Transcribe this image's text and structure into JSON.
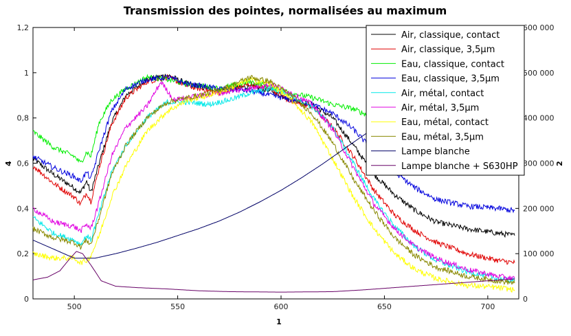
{
  "chart_data": {
    "type": "line",
    "title": "Transmission des pointes, normalisées au maximum",
    "xlabel": "1",
    "ylabel_left": "4",
    "ylabel_right": "2",
    "xlim": [
      480,
      715
    ],
    "ylim_left": [
      0,
      1.2
    ],
    "ylim_right": [
      0,
      600000
    ],
    "x_ticks": [
      500,
      550,
      600,
      650,
      700
    ],
    "x_tick_labels": [
      "500",
      "550",
      "600",
      "650",
      "700"
    ],
    "y_left_ticks": [
      0,
      0.2,
      0.4,
      0.6,
      0.8,
      1.0,
      1.2
    ],
    "y_left_tick_labels": [
      "0",
      "0,2",
      "0,4",
      "0,6",
      "0,8",
      "1",
      "1,2"
    ],
    "y_right_ticks": [
      0,
      100000,
      200000,
      300000,
      400000,
      500000,
      600000
    ],
    "y_right_tick_labels": [
      "0",
      "100 000",
      "200 000",
      "300 000",
      "400 000",
      "500 000",
      "600 000"
    ],
    "legend_position": "top-right",
    "series": [
      {
        "name": "Air, classique, contact",
        "color": "#000000",
        "axis": "left",
        "points": [
          [
            480,
            0.62
          ],
          [
            490,
            0.55
          ],
          [
            500,
            0.49
          ],
          [
            503,
            0.47
          ],
          [
            506,
            0.52
          ],
          [
            508,
            0.47
          ],
          [
            512,
            0.6
          ],
          [
            518,
            0.78
          ],
          [
            525,
            0.9
          ],
          [
            535,
            0.97
          ],
          [
            545,
            0.99
          ],
          [
            555,
            0.95
          ],
          [
            570,
            0.92
          ],
          [
            585,
            0.94
          ],
          [
            595,
            0.92
          ],
          [
            605,
            0.88
          ],
          [
            615,
            0.86
          ],
          [
            625,
            0.8
          ],
          [
            635,
            0.68
          ],
          [
            645,
            0.55
          ],
          [
            655,
            0.46
          ],
          [
            665,
            0.39
          ],
          [
            675,
            0.34
          ],
          [
            690,
            0.31
          ],
          [
            705,
            0.29
          ],
          [
            713,
            0.28
          ]
        ]
      },
      {
        "name": "Air, classique, 3,5µm",
        "color": "#e00000",
        "axis": "left",
        "points": [
          [
            480,
            0.59
          ],
          [
            490,
            0.51
          ],
          [
            500,
            0.45
          ],
          [
            503,
            0.42
          ],
          [
            506,
            0.47
          ],
          [
            508,
            0.43
          ],
          [
            512,
            0.58
          ],
          [
            518,
            0.77
          ],
          [
            525,
            0.89
          ],
          [
            535,
            0.96
          ],
          [
            545,
            0.98
          ],
          [
            555,
            0.94
          ],
          [
            570,
            0.91
          ],
          [
            585,
            0.95
          ],
          [
            595,
            0.93
          ],
          [
            605,
            0.87
          ],
          [
            615,
            0.85
          ],
          [
            625,
            0.76
          ],
          [
            635,
            0.63
          ],
          [
            645,
            0.48
          ],
          [
            655,
            0.37
          ],
          [
            665,
            0.3
          ],
          [
            675,
            0.25
          ],
          [
            690,
            0.2
          ],
          [
            705,
            0.17
          ],
          [
            713,
            0.16
          ]
        ]
      },
      {
        "name": "Eau, classique, contact",
        "color": "#00ee00",
        "axis": "left",
        "points": [
          [
            480,
            0.74
          ],
          [
            490,
            0.67
          ],
          [
            500,
            0.63
          ],
          [
            503,
            0.6
          ],
          [
            506,
            0.65
          ],
          [
            508,
            0.63
          ],
          [
            512,
            0.78
          ],
          [
            518,
            0.88
          ],
          [
            525,
            0.93
          ],
          [
            535,
            0.98
          ],
          [
            545,
            0.97
          ],
          [
            555,
            0.95
          ],
          [
            570,
            0.93
          ],
          [
            585,
            0.96
          ],
          [
            595,
            0.94
          ],
          [
            605,
            0.91
          ],
          [
            615,
            0.89
          ],
          [
            625,
            0.86
          ],
          [
            635,
            0.84
          ],
          [
            645,
            0.8
          ],
          [
            655,
            0.76
          ],
          [
            665,
            0.72
          ],
          [
            675,
            0.69
          ],
          [
            690,
            0.67
          ],
          [
            705,
            0.66
          ],
          [
            713,
            0.65
          ]
        ]
      },
      {
        "name": "Eau, classique, 3,5µm",
        "color": "#0000dd",
        "axis": "left",
        "points": [
          [
            480,
            0.63
          ],
          [
            490,
            0.58
          ],
          [
            500,
            0.54
          ],
          [
            503,
            0.52
          ],
          [
            506,
            0.56
          ],
          [
            508,
            0.53
          ],
          [
            512,
            0.66
          ],
          [
            518,
            0.83
          ],
          [
            525,
            0.93
          ],
          [
            535,
            0.97
          ],
          [
            545,
            0.98
          ],
          [
            555,
            0.95
          ],
          [
            570,
            0.93
          ],
          [
            585,
            0.92
          ],
          [
            595,
            0.9
          ],
          [
            605,
            0.88
          ],
          [
            615,
            0.86
          ],
          [
            625,
            0.82
          ],
          [
            635,
            0.75
          ],
          [
            645,
            0.65
          ],
          [
            655,
            0.56
          ],
          [
            665,
            0.49
          ],
          [
            675,
            0.44
          ],
          [
            690,
            0.41
          ],
          [
            705,
            0.4
          ],
          [
            713,
            0.39
          ]
        ]
      },
      {
        "name": "Air, métal, contact",
        "color": "#00e8e8",
        "axis": "left",
        "points": [
          [
            480,
            0.36
          ],
          [
            490,
            0.29
          ],
          [
            500,
            0.26
          ],
          [
            503,
            0.24
          ],
          [
            506,
            0.28
          ],
          [
            508,
            0.26
          ],
          [
            512,
            0.38
          ],
          [
            518,
            0.56
          ],
          [
            525,
            0.68
          ],
          [
            535,
            0.8
          ],
          [
            545,
            0.87
          ],
          [
            555,
            0.87
          ],
          [
            565,
            0.86
          ],
          [
            575,
            0.88
          ],
          [
            585,
            0.91
          ],
          [
            595,
            0.93
          ],
          [
            605,
            0.9
          ],
          [
            615,
            0.85
          ],
          [
            625,
            0.76
          ],
          [
            635,
            0.6
          ],
          [
            645,
            0.44
          ],
          [
            655,
            0.32
          ],
          [
            665,
            0.23
          ],
          [
            675,
            0.17
          ],
          [
            690,
            0.12
          ],
          [
            705,
            0.09
          ],
          [
            713,
            0.08
          ]
        ]
      },
      {
        "name": "Air, métal, 3,5µm",
        "color": "#e000e0",
        "axis": "left",
        "points": [
          [
            480,
            0.4
          ],
          [
            490,
            0.34
          ],
          [
            500,
            0.32
          ],
          [
            503,
            0.3
          ],
          [
            506,
            0.33
          ],
          [
            508,
            0.31
          ],
          [
            512,
            0.43
          ],
          [
            518,
            0.63
          ],
          [
            525,
            0.76
          ],
          [
            535,
            0.85
          ],
          [
            542,
            0.96
          ],
          [
            548,
            0.88
          ],
          [
            555,
            0.89
          ],
          [
            570,
            0.91
          ],
          [
            585,
            0.93
          ],
          [
            595,
            0.95
          ],
          [
            605,
            0.91
          ],
          [
            615,
            0.86
          ],
          [
            625,
            0.75
          ],
          [
            635,
            0.58
          ],
          [
            645,
            0.42
          ],
          [
            655,
            0.31
          ],
          [
            665,
            0.23
          ],
          [
            675,
            0.18
          ],
          [
            690,
            0.13
          ],
          [
            705,
            0.1
          ],
          [
            713,
            0.09
          ]
        ]
      },
      {
        "name": "Eau, métal, contact",
        "color": "#ffff00",
        "axis": "left",
        "points": [
          [
            480,
            0.2
          ],
          [
            490,
            0.18
          ],
          [
            500,
            0.18
          ],
          [
            503,
            0.16
          ],
          [
            506,
            0.17
          ],
          [
            508,
            0.19
          ],
          [
            512,
            0.28
          ],
          [
            518,
            0.45
          ],
          [
            525,
            0.59
          ],
          [
            535,
            0.74
          ],
          [
            545,
            0.83
          ],
          [
            555,
            0.88
          ],
          [
            565,
            0.9
          ],
          [
            575,
            0.93
          ],
          [
            585,
            0.97
          ],
          [
            595,
            0.95
          ],
          [
            605,
            0.88
          ],
          [
            615,
            0.78
          ],
          [
            625,
            0.62
          ],
          [
            635,
            0.45
          ],
          [
            645,
            0.31
          ],
          [
            655,
            0.2
          ],
          [
            665,
            0.13
          ],
          [
            675,
            0.09
          ],
          [
            690,
            0.06
          ],
          [
            705,
            0.05
          ],
          [
            713,
            0.04
          ]
        ]
      },
      {
        "name": "Eau, métal, 3,5µm",
        "color": "#888800",
        "axis": "left",
        "points": [
          [
            480,
            0.31
          ],
          [
            490,
            0.27
          ],
          [
            500,
            0.25
          ],
          [
            503,
            0.23
          ],
          [
            506,
            0.26
          ],
          [
            508,
            0.24
          ],
          [
            512,
            0.36
          ],
          [
            518,
            0.55
          ],
          [
            525,
            0.68
          ],
          [
            535,
            0.8
          ],
          [
            545,
            0.87
          ],
          [
            555,
            0.89
          ],
          [
            565,
            0.91
          ],
          [
            575,
            0.94
          ],
          [
            585,
            0.98
          ],
          [
            595,
            0.96
          ],
          [
            605,
            0.9
          ],
          [
            615,
            0.82
          ],
          [
            625,
            0.69
          ],
          [
            635,
            0.53
          ],
          [
            645,
            0.39
          ],
          [
            655,
            0.27
          ],
          [
            665,
            0.19
          ],
          [
            675,
            0.14
          ],
          [
            690,
            0.1
          ],
          [
            705,
            0.08
          ],
          [
            713,
            0.07
          ]
        ]
      },
      {
        "name": "Lampe blanche",
        "color": "#000066",
        "axis": "right",
        "points": [
          [
            480,
            130000
          ],
          [
            490,
            110000
          ],
          [
            500,
            90000
          ],
          [
            510,
            90000
          ],
          [
            520,
            100000
          ],
          [
            530,
            112000
          ],
          [
            540,
            125000
          ],
          [
            550,
            140000
          ],
          [
            560,
            155000
          ],
          [
            570,
            172000
          ],
          [
            580,
            192000
          ],
          [
            590,
            215000
          ],
          [
            600,
            240000
          ],
          [
            610,
            268000
          ],
          [
            620,
            298000
          ],
          [
            630,
            330000
          ],
          [
            640,
            362000
          ],
          [
            650,
            393000
          ],
          [
            660,
            418000
          ],
          [
            670,
            440000
          ],
          [
            680,
            465000
          ],
          [
            690,
            485000
          ],
          [
            700,
            505000
          ],
          [
            713,
            530000
          ]
        ]
      },
      {
        "name": "Lampe blanche + S630HP",
        "color": "#660066",
        "axis": "right",
        "points": [
          [
            480,
            42000
          ],
          [
            487,
            48000
          ],
          [
            493,
            62000
          ],
          [
            498,
            90000
          ],
          [
            501,
            105000
          ],
          [
            504,
            100000
          ],
          [
            508,
            75000
          ],
          [
            513,
            40000
          ],
          [
            520,
            28000
          ],
          [
            530,
            25000
          ],
          [
            545,
            22000
          ],
          [
            560,
            18000
          ],
          [
            575,
            16000
          ],
          [
            600,
            15000
          ],
          [
            625,
            16000
          ],
          [
            640,
            20000
          ],
          [
            655,
            25000
          ],
          [
            670,
            30000
          ],
          [
            685,
            35000
          ],
          [
            700,
            40000
          ],
          [
            713,
            44000
          ]
        ]
      }
    ]
  }
}
